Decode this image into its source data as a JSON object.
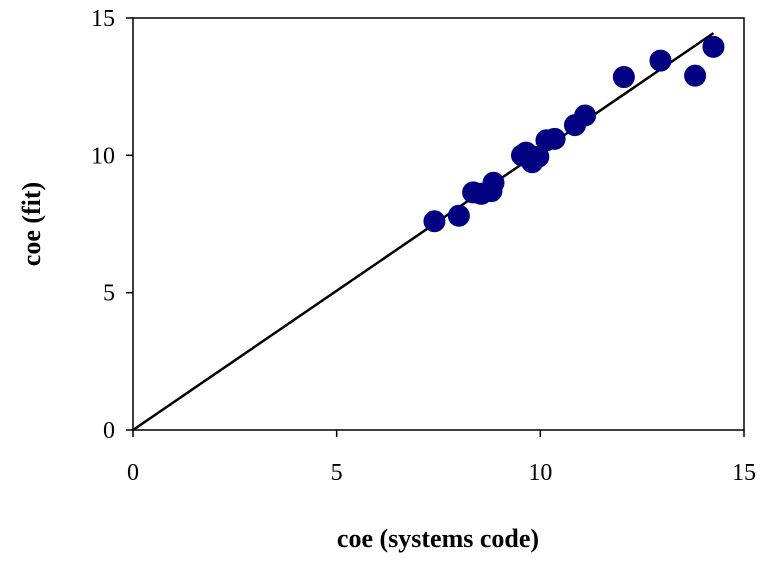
{
  "chart_data": {
    "type": "scatter",
    "title": "",
    "xlabel": "coe (systems code)",
    "ylabel": "coe (fit)",
    "xlim": [
      0,
      15
    ],
    "ylim": [
      0,
      15
    ],
    "x_ticks": [
      "0",
      "5",
      "10",
      "15"
    ],
    "y_ticks": [
      "0",
      "5",
      "10",
      "15"
    ],
    "grid": false,
    "legend": "none",
    "colors": {
      "points": "#000080",
      "line": "#000000",
      "axes": "#000000"
    },
    "series": [
      {
        "type": "scatter",
        "points": [
          {
            "x": 7.4,
            "y": 7.6
          },
          {
            "x": 8.0,
            "y": 7.8
          },
          {
            "x": 8.35,
            "y": 8.65
          },
          {
            "x": 8.55,
            "y": 8.6
          },
          {
            "x": 8.8,
            "y": 8.7
          },
          {
            "x": 8.85,
            "y": 9.0
          },
          {
            "x": 9.55,
            "y": 10.0
          },
          {
            "x": 9.65,
            "y": 10.1
          },
          {
            "x": 9.8,
            "y": 9.75
          },
          {
            "x": 9.95,
            "y": 9.95
          },
          {
            "x": 10.15,
            "y": 10.55
          },
          {
            "x": 10.35,
            "y": 10.6
          },
          {
            "x": 10.85,
            "y": 11.1
          },
          {
            "x": 11.1,
            "y": 11.45
          },
          {
            "x": 12.05,
            "y": 12.85
          },
          {
            "x": 12.95,
            "y": 13.45
          },
          {
            "x": 13.8,
            "y": 12.9
          },
          {
            "x": 14.25,
            "y": 13.95
          }
        ]
      },
      {
        "type": "line",
        "points": [
          {
            "x": 0,
            "y": 0
          },
          {
            "x": 14.25,
            "y": 14.45
          }
        ]
      }
    ]
  }
}
